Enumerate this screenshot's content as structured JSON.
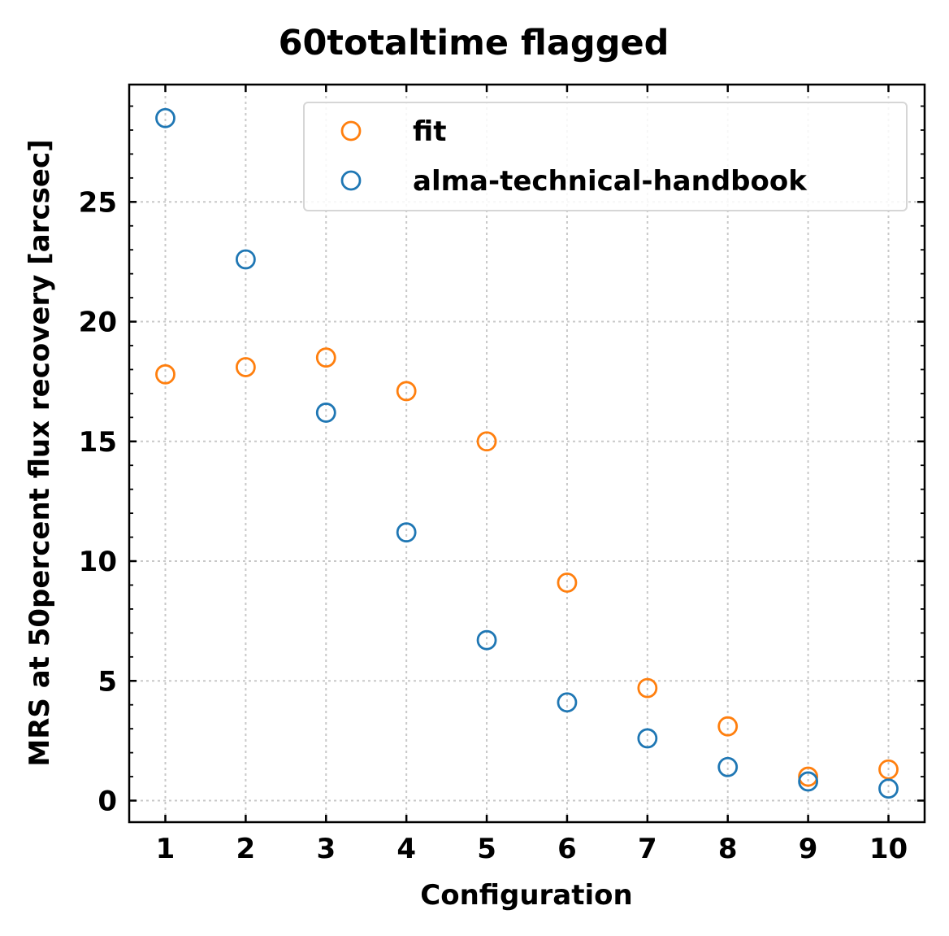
{
  "chart_data": {
    "type": "scatter",
    "title": "60totaltime flagged",
    "xlabel": "Configuration",
    "ylabel": "MRS at 50percent flux recovery [arcsec]",
    "xlim": [
      0.55,
      10.45
    ],
    "ylim": [
      -0.9,
      29.9
    ],
    "xticks": [
      1,
      2,
      3,
      4,
      5,
      6,
      7,
      8,
      9,
      10
    ],
    "yticks": [
      0,
      5,
      10,
      15,
      20,
      25
    ],
    "grid": true,
    "legend_position": "top-right",
    "series": [
      {
        "name": "fit",
        "color": "#ff7f0e",
        "marker": "open-circle",
        "x": [
          1,
          2,
          3,
          4,
          5,
          6,
          7,
          8,
          9,
          10
        ],
        "y": [
          17.8,
          18.1,
          18.5,
          17.1,
          15.0,
          9.1,
          4.7,
          3.1,
          1.0,
          1.3
        ]
      },
      {
        "name": "alma-technical-handbook",
        "color": "#1f77b4",
        "marker": "open-circle",
        "x": [
          1,
          2,
          3,
          4,
          5,
          6,
          7,
          8,
          9,
          10
        ],
        "y": [
          28.5,
          22.6,
          16.2,
          11.2,
          6.7,
          4.1,
          2.6,
          1.4,
          0.8,
          0.5
        ]
      }
    ]
  }
}
